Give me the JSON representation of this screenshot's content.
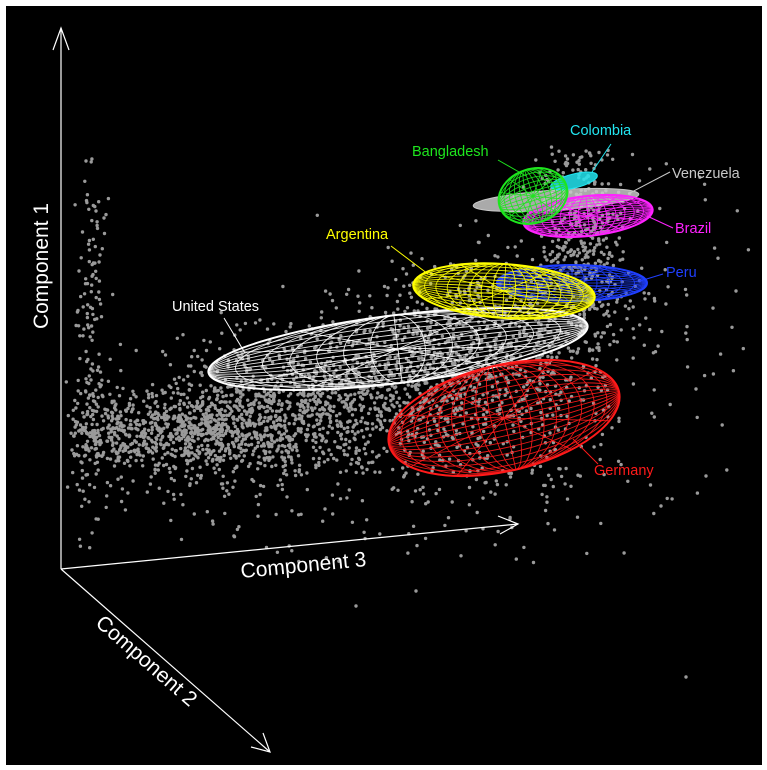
{
  "chart_data": {
    "type": "scatter",
    "projection": "3d",
    "axes": {
      "axis1": "Component 1",
      "axis2": "Component 2",
      "axis3": "Component 3"
    },
    "background_color": "#000000",
    "point_color": "#9a9a9a",
    "series": [
      {
        "name": "United States",
        "color": "#ffffff"
      },
      {
        "name": "Germany",
        "color": "#ff1a1a"
      },
      {
        "name": "Argentina",
        "color": "#ffff00"
      },
      {
        "name": "Peru",
        "color": "#1f3fff"
      },
      {
        "name": "Brazil",
        "color": "#ff22ff"
      },
      {
        "name": "Venezuela",
        "color": "#c8c8c8"
      },
      {
        "name": "Colombia",
        "color": "#22e5f0"
      },
      {
        "name": "Bangladesh",
        "color": "#1ee61e"
      }
    ]
  }
}
